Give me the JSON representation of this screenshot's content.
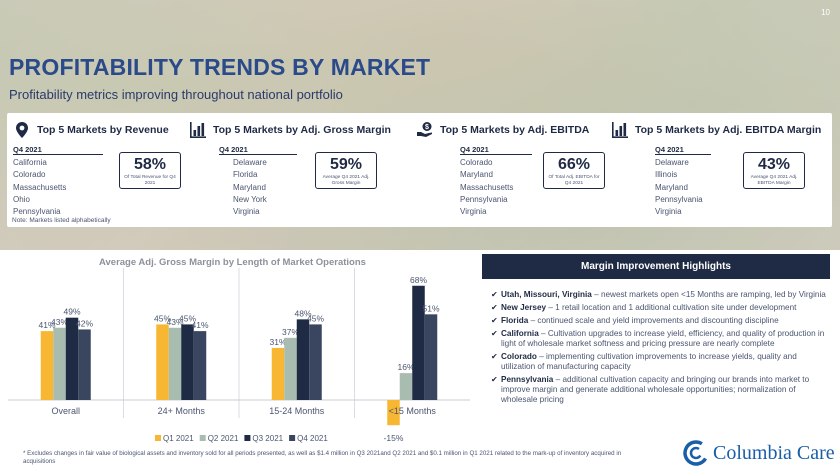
{
  "page_number": "10",
  "title": "PROFITABILITY TRENDS BY MARKET",
  "subtitle": "Profitability metrics improving throughout national portfolio",
  "markets": [
    {
      "icon": "map-pin-icon",
      "title": "Top 5 Markets by Revenue",
      "quarter": "Q4 2021",
      "items": [
        "California",
        "Colorado",
        "Massachusetts",
        "Ohio",
        "Pennsylvania"
      ],
      "kpi_value": "58%",
      "kpi_caption": "Of Total Revenue for Q4 2021"
    },
    {
      "icon": "bar-chart-icon",
      "title": "Top 5 Markets by Adj. Gross Margin",
      "quarter": "Q4 2021",
      "items": [
        "Delaware",
        "Florida",
        "Maryland",
        "New York",
        "Virginia"
      ],
      "kpi_value": "59%",
      "kpi_caption": "Average Q4 2021 Adj. Gross Margin"
    },
    {
      "icon": "hand-dollar-icon",
      "title": "Top 5 Markets by Adj. EBITDA",
      "quarter": "Q4 2021",
      "items": [
        "Colorado",
        "Maryland",
        "Massachusetts",
        "Pennsylvania",
        "Virginia"
      ],
      "kpi_value": "66%",
      "kpi_caption": "Of Total Adj. EBITDA for Q4 2021"
    },
    {
      "icon": "bar-chart-icon",
      "title": "Top 5 Markets by Adj. EBITDA Margin",
      "quarter": "Q4 2021",
      "items": [
        "Delaware",
        "Illinois",
        "Maryland",
        "Pennsylvania",
        "Virginia"
      ],
      "kpi_value": "43%",
      "kpi_caption": "Average Q4 2021 Adj. EBITDA Margin"
    }
  ],
  "markets_note": "Note: Markets listed alphabetically",
  "chart_data": {
    "type": "bar",
    "title": "Average Adj. Gross Margin by Length of Market Operations",
    "categories": [
      "Overall",
      "24+ Months",
      "15-24 Months",
      "<15 Months"
    ],
    "series": [
      {
        "name": "Q1 2021",
        "color": "#f7b733",
        "values": [
          41,
          45,
          31,
          -15
        ]
      },
      {
        "name": "Q2 2021",
        "color": "#a9bcb0",
        "values": [
          43,
          43,
          37,
          16
        ]
      },
      {
        "name": "Q3 2021",
        "color": "#1f2a44",
        "values": [
          49,
          45,
          48,
          68
        ]
      },
      {
        "name": "Q4 2021",
        "color": "#3a4660",
        "values": [
          42,
          41,
          45,
          51
        ]
      }
    ],
    "value_suffix": "%",
    "ylim": [
      -20,
      75
    ],
    "legend": "bottom",
    "grid": false
  },
  "highlights": {
    "title": "Margin Improvement Highlights",
    "items": [
      {
        "bold": "Utah, Missouri, Virginia",
        "text": " – newest markets open <15 Months are ramping, led by Virginia"
      },
      {
        "bold": "New Jersey",
        "text": " – 1 retail location and 1 additional cultivation site under development"
      },
      {
        "bold": "Florida",
        "text": " – continued scale and yield improvements and discounting discipline"
      },
      {
        "bold": "California",
        "text": " – Cultivation upgrades to increase yield, efficiency, and quality of production in light of wholesale market softness and pricing pressure are nearly complete"
      },
      {
        "bold": "Colorado",
        "text": " – implementing cultivation improvements to increase yields, quality and utilization of manufacturing capacity"
      },
      {
        "bold": "Pennsylvania",
        "text": " – additional cultivation capacity and bringing our brands into market to improve margin and generate additional wholesale opportunities; normalization of wholesale pricing"
      }
    ]
  },
  "footnote": "* Excludes changes in fair value of biological assets and inventory sold for all periods presented, as well as $1.4 million in Q3 2021and Q2 2021 and $0.1 million in Q1 2021 related to the mark-up of inventory acquired in acquisitions",
  "logo": {
    "icon": "columbia-care-logo-icon",
    "text": "Columbia Care"
  }
}
